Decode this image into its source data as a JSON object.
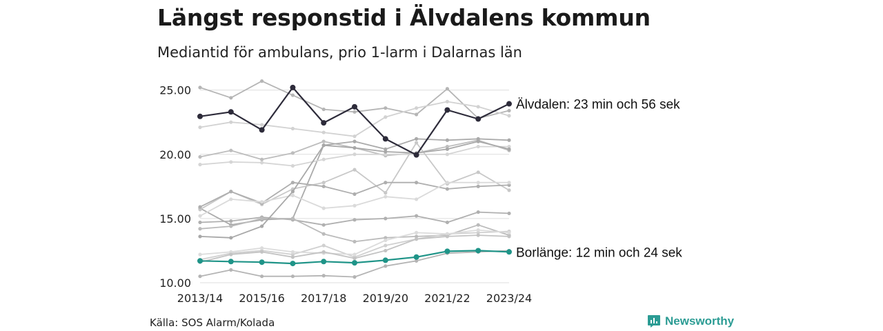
{
  "title": "Längst responstid i Älvdalens kommun",
  "subtitle": "Mediantid för ambulans, prio 1-larm i Dalarnas län",
  "source": "Källa: SOS Alarm/Kolada",
  "brand": {
    "name": "Newsworthy",
    "icon": "newsworthy-chart-bubble-icon",
    "color": "#2c9c94"
  },
  "chart_data": {
    "type": "line",
    "title": "Längst responstid i Älvdalens kommun",
    "subtitle": "Mediantid för ambulans, prio 1-larm i Dalarnas län",
    "x": [
      "2013/14",
      "2014/15",
      "2015/16",
      "2016/17",
      "2017/18",
      "2018/19",
      "2019/20",
      "2020/21",
      "2021/22",
      "2022/23",
      "2023/24"
    ],
    "x_tick_labels": [
      "2013/14",
      "2015/16",
      "2017/18",
      "2019/20",
      "2021/22",
      "2023/24"
    ],
    "ylim": [
      10,
      26
    ],
    "y_ticks": [
      10,
      15,
      20,
      25
    ],
    "y_tick_labels": [
      "10.00",
      "15.00",
      "20.00",
      "25.00"
    ],
    "grid": true,
    "highlight": [
      {
        "name": "Älvdalen",
        "label": "Älvdalen: 23 min och 56 sek",
        "color": "#2d2b3a",
        "values": [
          22.95,
          23.3,
          21.9,
          25.2,
          22.45,
          23.7,
          21.2,
          19.95,
          23.45,
          22.75,
          23.93
        ]
      },
      {
        "name": "Borlänge",
        "label": "Borlänge: 12 min och 24 sek",
        "color": "#1f9488",
        "values": [
          11.7,
          11.65,
          11.6,
          11.5,
          11.65,
          11.55,
          11.75,
          12.0,
          12.45,
          12.5,
          12.4
        ]
      }
    ],
    "background_series": [
      {
        "color": "#b5b5b5",
        "values": [
          25.2,
          24.4,
          25.7,
          24.6,
          23.5,
          23.3,
          23.6,
          23.1,
          25.1,
          22.8,
          23.4
        ]
      },
      {
        "color": "#d2d2d2",
        "values": [
          22.1,
          22.5,
          22.3,
          22.0,
          21.7,
          21.4,
          22.9,
          23.6,
          24.1,
          23.7,
          23.0
        ]
      },
      {
        "color": "#bdbdbd",
        "values": [
          19.8,
          20.3,
          19.6,
          20.1,
          21.0,
          20.5,
          19.9,
          20.1,
          20.6,
          21.1,
          20.3
        ]
      },
      {
        "color": "#aaaaaa",
        "values": [
          15.8,
          14.5,
          14.9,
          15.0,
          20.7,
          21.0,
          20.4,
          21.2,
          21.1,
          21.2,
          21.1
        ]
      },
      {
        "color": "#d5d5d5",
        "values": [
          19.2,
          19.4,
          19.35,
          19.1,
          19.6,
          20.0,
          20.0,
          20.0,
          20.0,
          20.6,
          20.6
        ]
      },
      {
        "color": "#c8c8c8",
        "values": [
          15.7,
          17.1,
          16.1,
          17.3,
          17.8,
          18.8,
          17.0,
          20.9,
          17.7,
          18.6,
          17.2
        ]
      },
      {
        "color": "#aeaeae",
        "values": [
          15.9,
          17.1,
          16.2,
          17.8,
          17.5,
          16.9,
          17.8,
          17.8,
          17.3,
          17.5,
          17.6
        ]
      },
      {
        "color": "#dadada",
        "values": [
          15.2,
          16.5,
          16.3,
          16.8,
          15.8,
          16.0,
          16.7,
          16.5,
          17.8,
          17.8,
          17.8
        ]
      },
      {
        "color": "#b0b0b0",
        "values": [
          14.7,
          14.8,
          15.1,
          14.9,
          14.5,
          14.9,
          15.0,
          15.2,
          14.7,
          15.5,
          15.4
        ]
      },
      {
        "color": "#bbbbbb",
        "values": [
          14.2,
          14.4,
          15.0,
          15.0,
          13.8,
          13.2,
          13.5,
          13.6,
          13.7,
          14.5,
          13.7
        ]
      },
      {
        "color": "#a8a8a8",
        "values": [
          13.6,
          13.5,
          14.4,
          17.1,
          20.7,
          20.5,
          20.2,
          20.1,
          20.4,
          21.0,
          20.4
        ]
      },
      {
        "color": "#d0d0d0",
        "values": [
          11.8,
          12.3,
          12.5,
          12.2,
          12.9,
          12.0,
          12.9,
          13.4,
          13.8,
          13.9,
          14.0
        ]
      },
      {
        "color": "#dcdcdc",
        "values": [
          12.2,
          12.4,
          12.7,
          12.4,
          12.3,
          12.2,
          13.3,
          13.9,
          13.8,
          14.1,
          13.9
        ]
      },
      {
        "color": "#c3c3c3",
        "values": [
          11.6,
          12.2,
          12.4,
          12.0,
          12.4,
          11.9,
          12.5,
          13.4,
          13.6,
          13.7,
          13.6
        ]
      },
      {
        "color": "#b4b4b4",
        "values": [
          10.5,
          11.0,
          10.5,
          10.5,
          10.55,
          10.45,
          11.3,
          11.7,
          12.3,
          12.4,
          12.5
        ]
      }
    ]
  }
}
